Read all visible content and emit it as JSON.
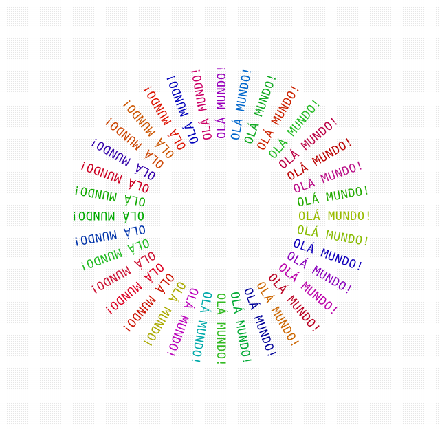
{
  "text": "OLÁ MUNDO!",
  "colors": [
    "#9900bb",
    "#0066cc",
    "#11aa22",
    "#cc2200",
    "#22bb22",
    "#bb0044",
    "#bb0000",
    "#bb1188",
    "#22aa00",
    "#99bb00",
    "#88bb00",
    "#1100bb",
    "#8800bb",
    "#bb00aa",
    "#bb0022",
    "#cc6600",
    "#000099",
    "#00aa33",
    "#33bb22",
    "#00aaaa",
    "#bb00bb",
    "#aaaa00",
    "#cc1100",
    "#dd0022",
    "#cc1133",
    "#22bb22",
    "#0033aa",
    "#00aa00",
    "#11aa00",
    "#cc0022",
    "#3300aa",
    "#cc4400",
    "#cc5500",
    "#dd1100",
    "#0000bb",
    "#cc0066"
  ]
}
